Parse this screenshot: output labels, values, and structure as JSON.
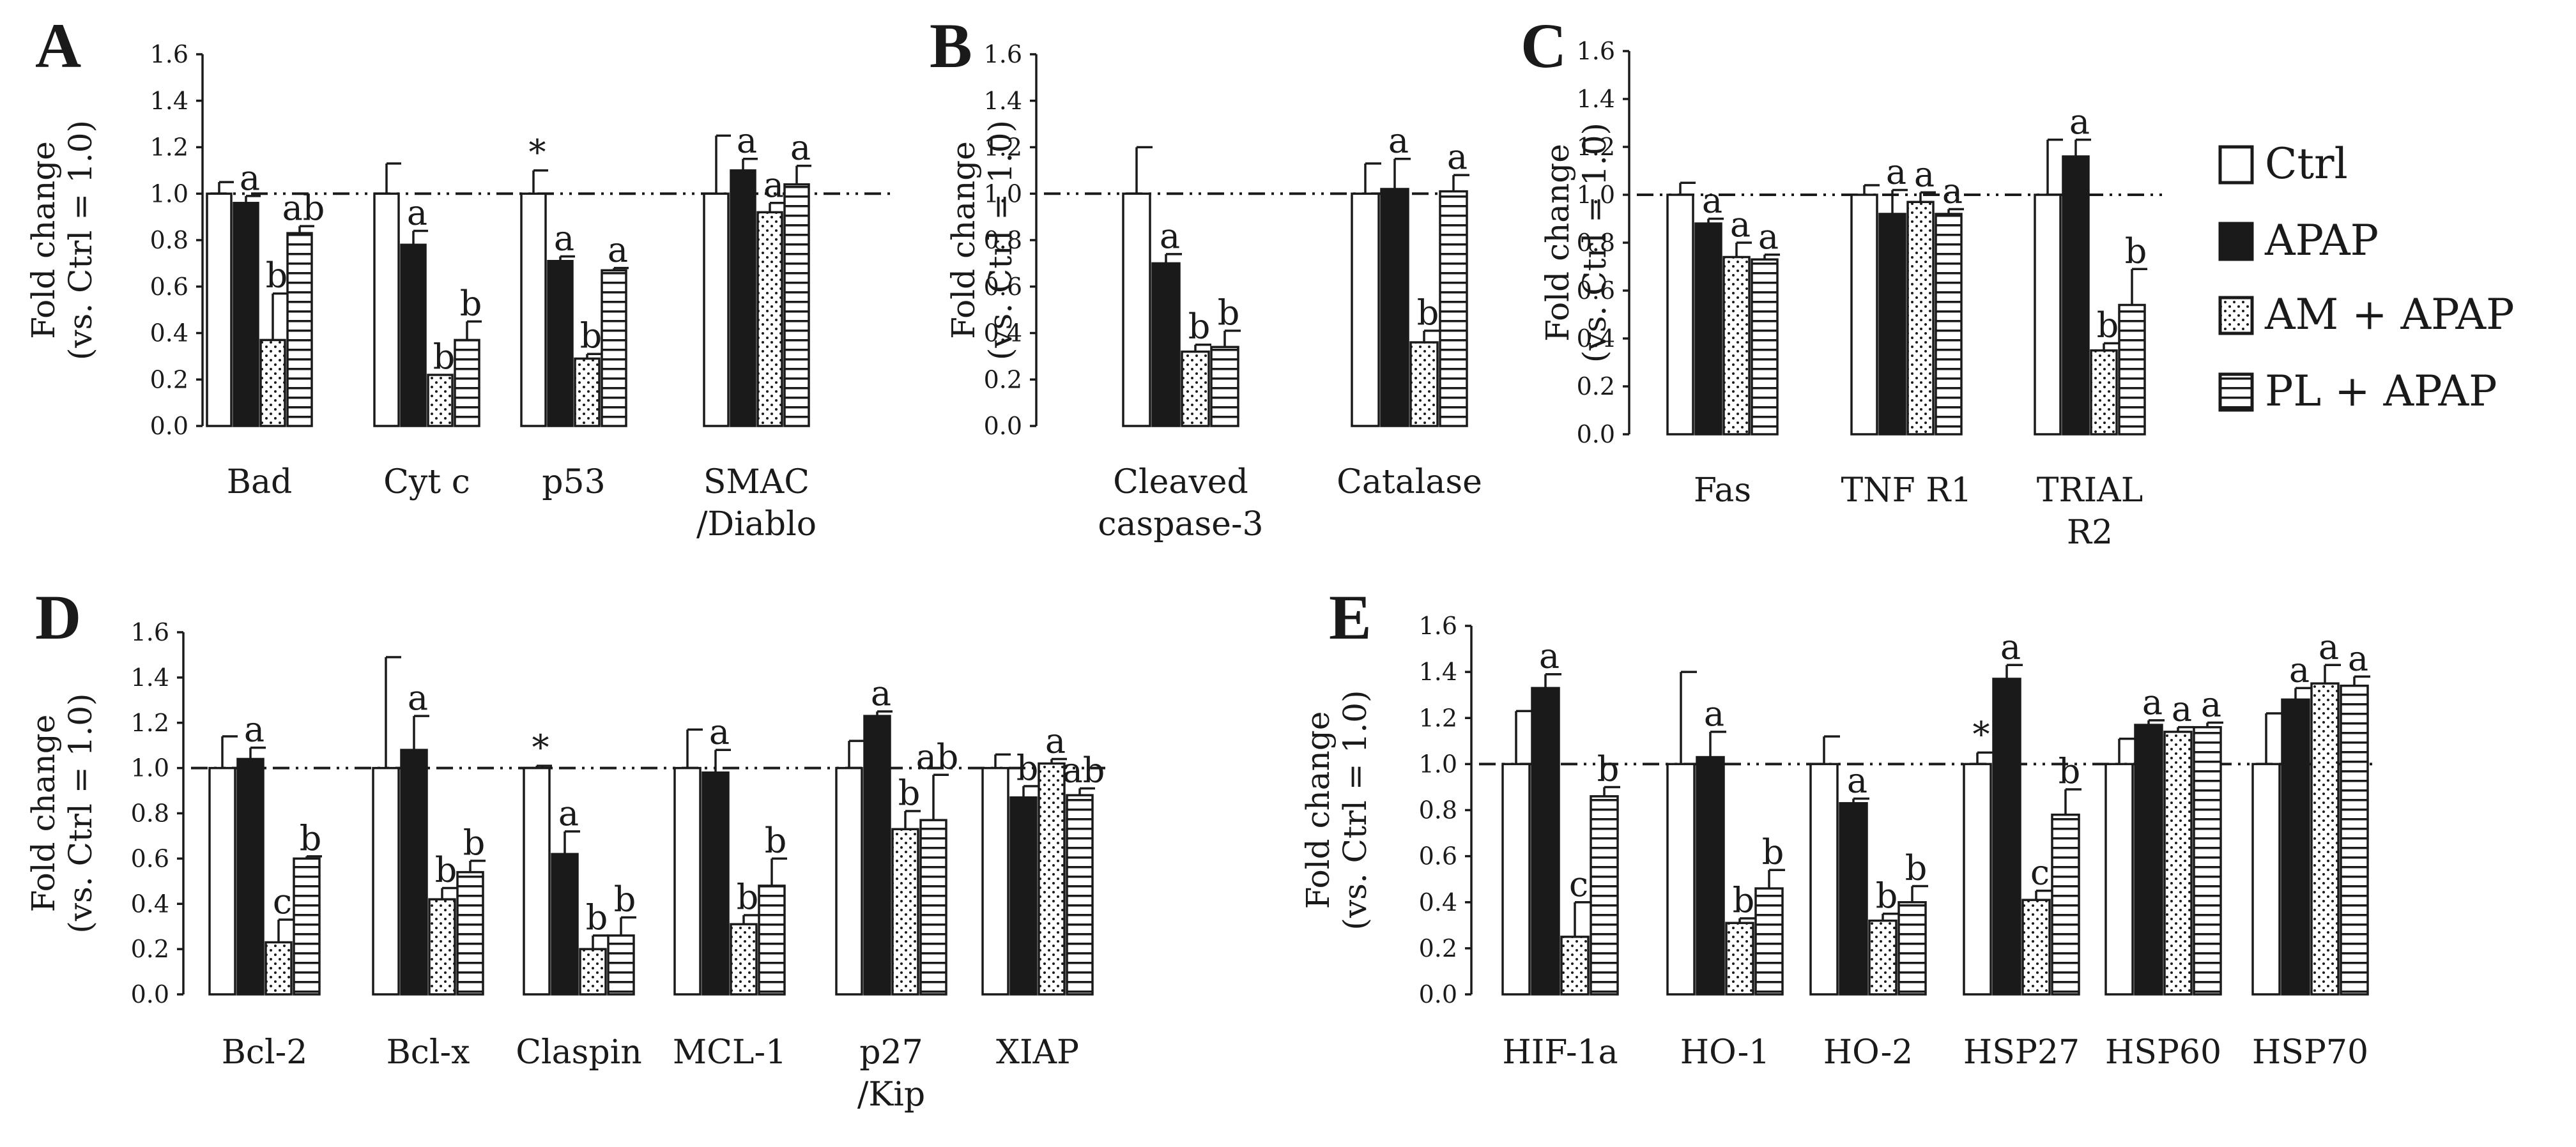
{
  "legend": {
    "items": [
      {
        "label": "Ctrl",
        "pattern": "white"
      },
      {
        "label": "APAP",
        "pattern": "black"
      },
      {
        "label": "AM + APAP",
        "pattern": "dots"
      },
      {
        "label": "PL + APAP",
        "pattern": "hlines"
      }
    ]
  },
  "colors": {
    "ink": "#1a1a1a",
    "background": "#ffffff"
  },
  "chart_data": [
    {
      "panel": "A",
      "type": "bar",
      "ylabel": [
        "Fold change",
        "(vs. Ctrl = 1.0)"
      ],
      "ylim": [
        0,
        1.6
      ],
      "yticks": [
        "0.0",
        "0.2",
        "0.4",
        "0.6",
        "0.8",
        "1.0",
        "1.2",
        "1.4",
        "1.6"
      ],
      "reference_line": 1.0,
      "categories": [
        [
          "Bad"
        ],
        [
          "Cyt c"
        ],
        [
          "p53"
        ],
        [
          "SMAC",
          "/Diablo"
        ]
      ],
      "series_names": [
        "Ctrl",
        "APAP",
        "AM + APAP",
        "PL + APAP"
      ],
      "values": [
        [
          1.0,
          0.96,
          0.37,
          0.83
        ],
        [
          1.0,
          0.78,
          0.22,
          0.37
        ],
        [
          1.0,
          0.71,
          0.29,
          0.67
        ],
        [
          1.0,
          1.1,
          0.92,
          1.04
        ]
      ],
      "errors": [
        [
          0.05,
          0.03,
          0.2,
          0.03
        ],
        [
          0.13,
          0.06,
          0.0,
          0.08
        ],
        [
          0.1,
          0.02,
          0.02,
          0.01
        ],
        [
          0.25,
          0.05,
          0.04,
          0.08
        ]
      ],
      "annotations": [
        [
          "",
          "a",
          "b",
          "ab"
        ],
        [
          "",
          "a",
          "b",
          "b"
        ],
        [
          "*",
          "a",
          "b",
          "a"
        ],
        [
          "",
          "a",
          "a",
          "a"
        ]
      ]
    },
    {
      "panel": "B",
      "type": "bar",
      "ylabel": [
        "Fold change",
        "(vs. Ctrl = 1.0)"
      ],
      "ylim": [
        0,
        1.6
      ],
      "yticks": [
        "0.0",
        "0.2",
        "0.4",
        "0.6",
        "0.8",
        "1.0",
        "1.2",
        "1.4",
        "1.6"
      ],
      "reference_line": 1.0,
      "categories": [
        [
          "Cleaved",
          "caspase-3"
        ],
        [
          "Catalase"
        ]
      ],
      "series_names": [
        "Ctrl",
        "APAP",
        "AM + APAP",
        "PL + APAP"
      ],
      "values": [
        [
          1.0,
          0.7,
          0.32,
          0.34
        ],
        [
          1.0,
          1.02,
          0.36,
          1.01
        ]
      ],
      "errors": [
        [
          0.2,
          0.04,
          0.03,
          0.07
        ],
        [
          0.13,
          0.13,
          0.05,
          0.07
        ]
      ],
      "annotations": [
        [
          "",
          "a",
          "b",
          "b"
        ],
        [
          "",
          "a",
          "b",
          "a"
        ]
      ]
    },
    {
      "panel": "C",
      "type": "bar",
      "ylabel": [
        "Fold change",
        "(vs. Ctrl = 1.0)"
      ],
      "ylim": [
        0,
        1.6
      ],
      "yticks": [
        "0.0",
        "0.2",
        "0.4",
        "0.6",
        "0.8",
        "1.0",
        "1.2",
        "1.4",
        "1.6"
      ],
      "reference_line": 1.0,
      "categories": [
        [
          "Fas"
        ],
        [
          "TNF R1"
        ],
        [
          "TRIAL",
          "R2"
        ]
      ],
      "series_names": [
        "Ctrl",
        "APAP",
        "AM + APAP",
        "PL + APAP"
      ],
      "values": [
        [
          1.0,
          0.88,
          0.74,
          0.73
        ],
        [
          1.0,
          0.92,
          0.97,
          0.92
        ],
        [
          1.0,
          1.16,
          0.35,
          0.54
        ]
      ],
      "errors": [
        [
          0.05,
          0.02,
          0.06,
          0.02
        ],
        [
          0.04,
          0.1,
          0.04,
          0.02
        ],
        [
          0.23,
          0.07,
          0.03,
          0.15
        ]
      ],
      "annotations": [
        [
          "",
          "a",
          "a",
          "a"
        ],
        [
          "",
          "a",
          "a",
          "a"
        ],
        [
          "",
          "a",
          "b",
          "b"
        ]
      ]
    },
    {
      "panel": "D",
      "type": "bar",
      "ylabel": [
        "Fold change",
        "(vs. Ctrl = 1.0)"
      ],
      "ylim": [
        0,
        1.6
      ],
      "yticks": [
        "0.0",
        "0.2",
        "0.4",
        "0.6",
        "0.8",
        "1.0",
        "1.2",
        "1.4",
        "1.6"
      ],
      "reference_line": 1.0,
      "categories": [
        [
          "Bcl-2"
        ],
        [
          "Bcl-x"
        ],
        [
          "Claspin"
        ],
        [
          "MCL-1"
        ],
        [
          "p27",
          "/Kip"
        ],
        [
          "XIAP"
        ]
      ],
      "series_names": [
        "Ctrl",
        "APAP",
        "AM + APAP",
        "PL + APAP"
      ],
      "values": [
        [
          1.0,
          1.04,
          0.23,
          0.6
        ],
        [
          1.0,
          1.08,
          0.42,
          0.54
        ],
        [
          1.0,
          0.62,
          0.2,
          0.26
        ],
        [
          1.0,
          0.98,
          0.31,
          0.48
        ],
        [
          1.0,
          1.23,
          0.73,
          0.77
        ],
        [
          1.0,
          0.87,
          1.02,
          0.88
        ]
      ],
      "errors": [
        [
          0.14,
          0.05,
          0.1,
          0.01
        ],
        [
          0.49,
          0.15,
          0.05,
          0.05
        ],
        [
          0.01,
          0.1,
          0.06,
          0.08
        ],
        [
          0.17,
          0.1,
          0.04,
          0.12
        ],
        [
          0.12,
          0.02,
          0.08,
          0.2
        ],
        [
          0.06,
          0.05,
          0.02,
          0.03
        ]
      ],
      "annotations": [
        [
          "",
          "a",
          "c",
          "b"
        ],
        [
          "",
          "a",
          "b",
          "b"
        ],
        [
          "*",
          "a",
          "b",
          "b"
        ],
        [
          "",
          "a",
          "b",
          "b"
        ],
        [
          "",
          "a",
          "b",
          "ab"
        ],
        [
          "",
          "b",
          "a",
          "ab"
        ]
      ]
    },
    {
      "panel": "E",
      "type": "bar",
      "ylabel": [
        "Fold change",
        "(vs. Ctrl = 1.0)"
      ],
      "ylim": [
        0,
        1.6
      ],
      "yticks": [
        "0.0",
        "0.2",
        "0.4",
        "0.6",
        "0.8",
        "1.0",
        "1.2",
        "1.4",
        "1.6"
      ],
      "reference_line": 1.0,
      "categories": [
        [
          "HIF-1a"
        ],
        [
          "HO-1"
        ],
        [
          "HO-2"
        ],
        [
          "HSP27"
        ],
        [
          "HSP60"
        ],
        [
          "HSP70"
        ]
      ],
      "series_names": [
        "Ctrl",
        "APAP",
        "AM + APAP",
        "PL + APAP"
      ],
      "values": [
        [
          1.0,
          1.33,
          0.25,
          0.86
        ],
        [
          1.0,
          1.03,
          0.31,
          0.46
        ],
        [
          1.0,
          0.83,
          0.32,
          0.4
        ],
        [
          1.0,
          1.37,
          0.41,
          0.78
        ],
        [
          1.0,
          1.17,
          1.14,
          1.16
        ],
        [
          1.0,
          1.28,
          1.35,
          1.34
        ]
      ],
      "errors": [
        [
          0.23,
          0.06,
          0.15,
          0.04
        ],
        [
          0.4,
          0.11,
          0.02,
          0.08
        ],
        [
          0.12,
          0.02,
          0.03,
          0.07
        ],
        [
          0.05,
          0.06,
          0.04,
          0.11
        ],
        [
          0.11,
          0.02,
          0.02,
          0.02
        ],
        [
          0.22,
          0.05,
          0.08,
          0.04
        ]
      ],
      "annotations": [
        [
          "",
          "a",
          "c",
          "b"
        ],
        [
          "",
          "a",
          "b",
          "b"
        ],
        [
          "",
          "a",
          "b",
          "b"
        ],
        [
          "*",
          "a",
          "c",
          "b"
        ],
        [
          "",
          "a",
          "a",
          "a"
        ],
        [
          "",
          "a",
          "a",
          "a"
        ]
      ]
    }
  ]
}
